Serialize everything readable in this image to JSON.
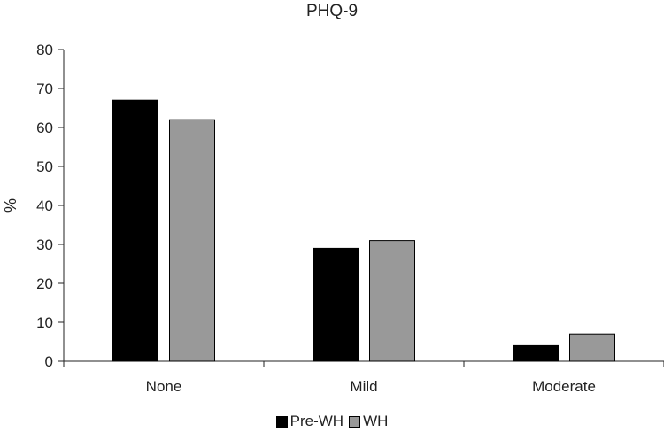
{
  "chart_data": {
    "type": "bar",
    "title": "PHQ-9",
    "xlabel": "",
    "ylabel": "%",
    "ylim": [
      0,
      80
    ],
    "yticks": [
      0,
      10,
      20,
      30,
      40,
      50,
      60,
      70,
      80
    ],
    "grid": false,
    "legend_position": "bottom",
    "categories": [
      "None",
      "Mild",
      "Moderate"
    ],
    "series": [
      {
        "name": "Pre-WH",
        "values": [
          67,
          29,
          4
        ],
        "color": "#000000"
      },
      {
        "name": "WH",
        "values": [
          62,
          31,
          7
        ],
        "color": "#999999"
      }
    ]
  }
}
